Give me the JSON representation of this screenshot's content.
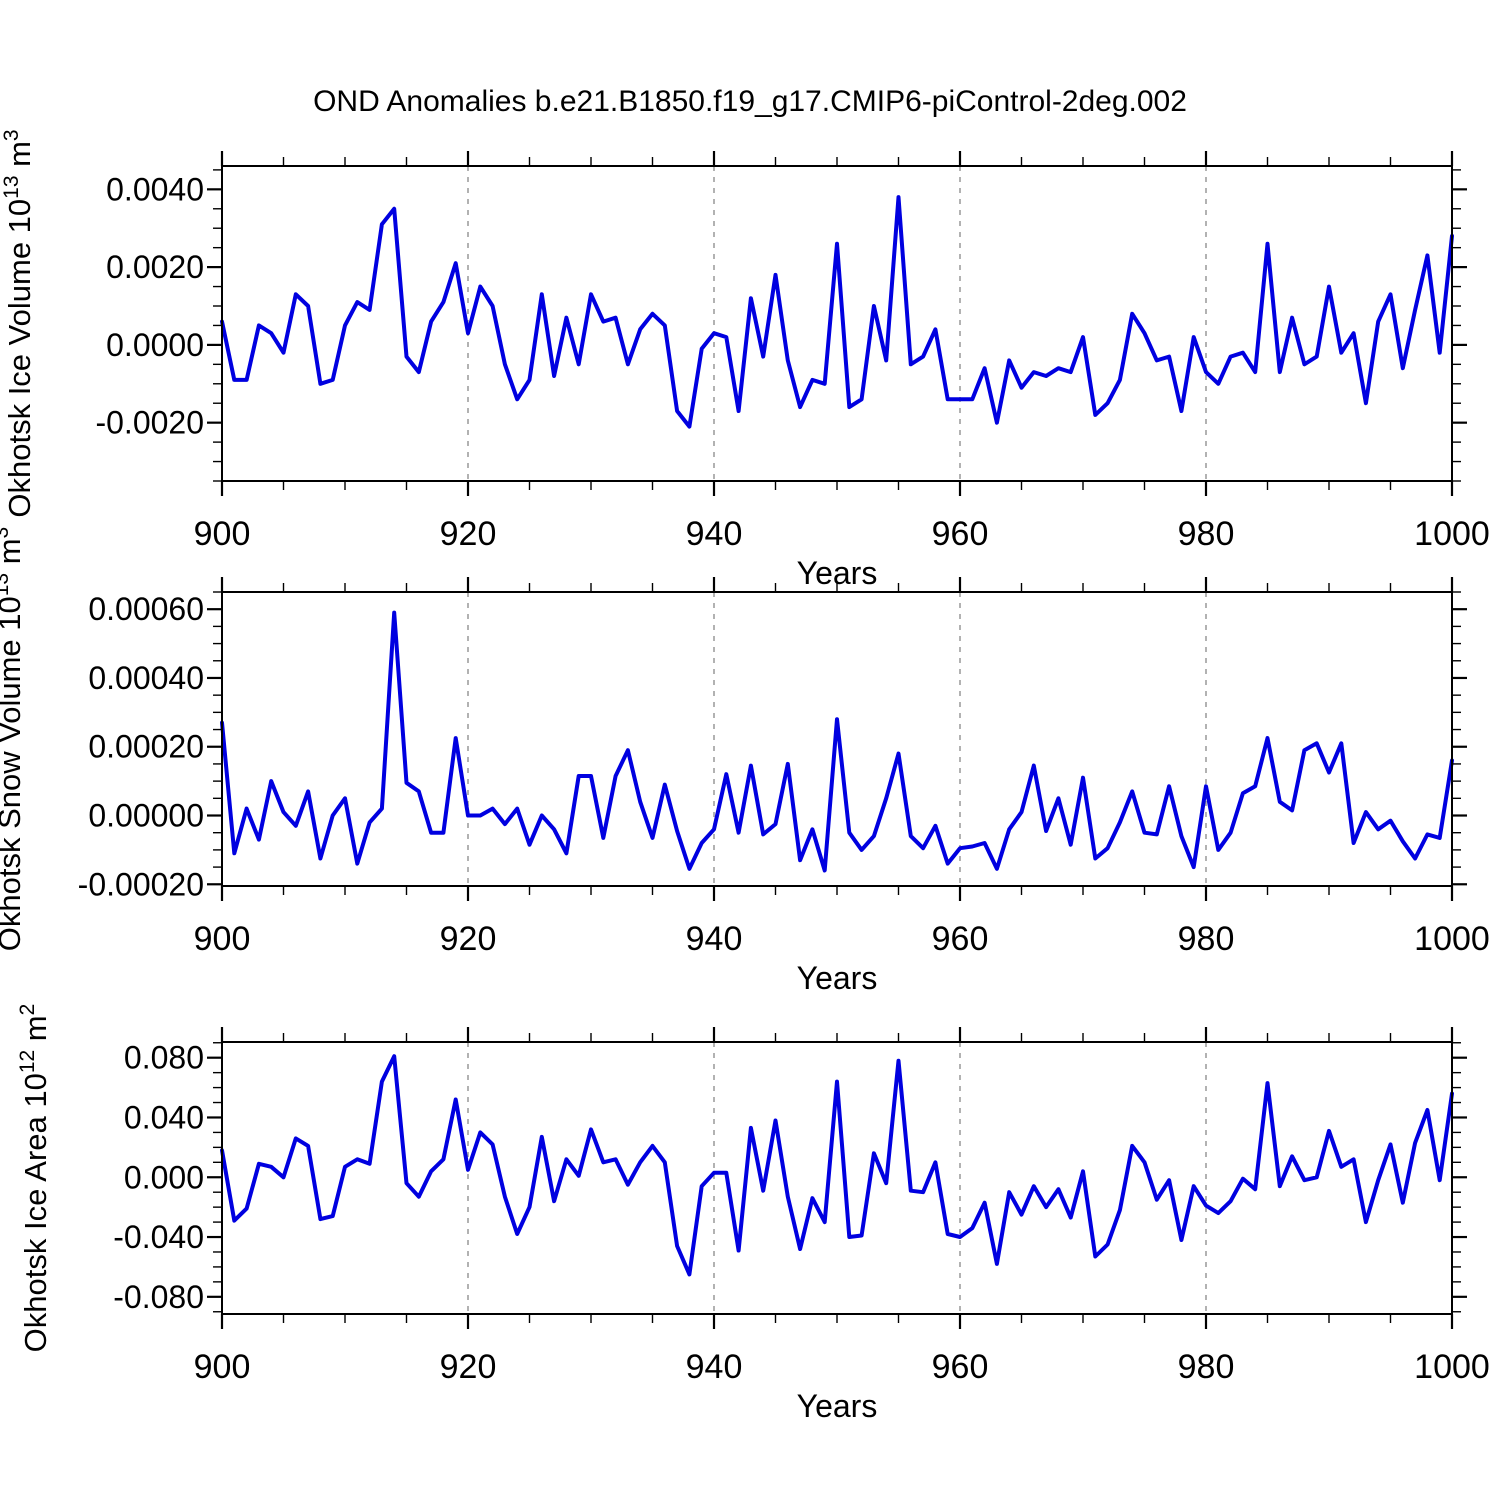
{
  "title": "OND Anomalies b.e21.B1850.f19_g17.CMIP6-piControl-2deg.002",
  "colors": {
    "line": "#0000e0",
    "grid": "#999999",
    "frame": "#000000",
    "text": "#000000"
  },
  "chart_data": {
    "type": "line",
    "title": "OND Anomalies b.e21.B1850.f19_g17.CMIP6-piControl-2deg.002",
    "x_label": "Years",
    "x_range": [
      900,
      1000
    ],
    "x_step": 1,
    "x_ticks_major": [
      900,
      920,
      940,
      960,
      980,
      1000
    ],
    "x_tick_labels": [
      "900",
      "920",
      "940",
      "960",
      "980",
      "1000"
    ],
    "x_minor_step": 5,
    "x_gridlines": [
      920,
      940,
      960,
      980
    ],
    "grid_style": "dashed",
    "legend": "none",
    "panels": [
      {
        "id": "ice-volume",
        "ylabel_text": "Okhotsk Ice Volume 10^13 m^3",
        "ylabel_parts": [
          {
            "t": "Okhotsk Ice Volume 10"
          },
          {
            "t": "13",
            "sup": true
          },
          {
            "t": " m"
          },
          {
            "t": "3",
            "sup": true
          }
        ],
        "ylim": [
          -0.0035,
          0.0046
        ],
        "y_ticks": [
          {
            "v": 0.004,
            "label": "0.0040"
          },
          {
            "v": 0.002,
            "label": "0.0020"
          },
          {
            "v": 0.0,
            "label": "0.0000"
          },
          {
            "v": -0.002,
            "label": "-0.0020"
          }
        ],
        "y_minor_step": 0.0005,
        "values": [
          0.0006,
          -0.0009,
          -0.0009,
          0.0005,
          0.0003,
          -0.0002,
          0.0013,
          0.001,
          -0.001,
          -0.0009,
          0.0005,
          0.0011,
          0.0009,
          0.0031,
          0.0035,
          -0.0003,
          -0.0007,
          0.0006,
          0.0011,
          0.0021,
          0.0003,
          0.0015,
          0.001,
          -0.0005,
          -0.0014,
          -0.0009,
          0.0013,
          -0.0008,
          0.0007,
          -0.0005,
          0.0013,
          0.0006,
          0.0007,
          -0.0005,
          0.0004,
          0.0008,
          0.0005,
          -0.0017,
          -0.0021,
          -0.0001,
          0.0003,
          0.0002,
          -0.0017,
          0.0012,
          -0.0003,
          0.0018,
          -0.0004,
          -0.0016,
          -0.0009,
          -0.001,
          0.0026,
          -0.0016,
          -0.0014,
          0.001,
          -0.0004,
          0.0038,
          -0.0005,
          -0.0003,
          0.0004,
          -0.0014,
          -0.0014,
          -0.0014,
          -0.0006,
          -0.002,
          -0.0004,
          -0.0011,
          -0.0007,
          -0.0008,
          -0.0006,
          -0.0007,
          0.0002,
          -0.0018,
          -0.0015,
          -0.0009,
          0.0008,
          0.0003,
          -0.0004,
          -0.0003,
          -0.0017,
          0.0002,
          -0.0007,
          -0.001,
          -0.0003,
          -0.0002,
          -0.0007,
          0.0026,
          -0.0007,
          0.0007,
          -0.0005,
          -0.0003,
          0.0015,
          -0.0002,
          0.0003,
          -0.0015,
          0.0006,
          0.0013,
          -0.0006,
          0.0009,
          0.0023,
          -0.0002,
          0.0028
        ]
      },
      {
        "id": "snow-volume",
        "ylabel_text": "Okhotsk Snow Volume 10^13 m^3",
        "ylabel_parts": [
          {
            "t": "Okhotsk Snow Volume 10"
          },
          {
            "t": "13",
            "sup": true
          },
          {
            "t": " m"
          },
          {
            "t": "3",
            "sup": true
          }
        ],
        "ylim": [
          -0.000205,
          0.00065
        ],
        "y_ticks": [
          {
            "v": 0.0006,
            "label": "0.00060"
          },
          {
            "v": 0.0004,
            "label": "0.00040"
          },
          {
            "v": 0.0002,
            "label": "0.00020"
          },
          {
            "v": 0.0,
            "label": "0.00000"
          },
          {
            "v": -0.0002,
            "label": "-0.00020"
          }
        ],
        "y_minor_step": 5e-05,
        "values": [
          0.00027,
          -0.00011,
          2e-05,
          -7e-05,
          0.0001,
          1e-05,
          -3e-05,
          7e-05,
          -0.000125,
          0.0,
          5e-05,
          -0.00014,
          -2e-05,
          2e-05,
          0.00059,
          9.5e-05,
          7e-05,
          -5e-05,
          -5e-05,
          0.000225,
          0.0,
          0.0,
          2e-05,
          -2.5e-05,
          2e-05,
          -8.5e-05,
          0.0,
          -4e-05,
          -0.00011,
          0.000115,
          0.000115,
          -6.5e-05,
          0.000115,
          0.00019,
          4e-05,
          -6.5e-05,
          9e-05,
          -4.5e-05,
          -0.000155,
          -8e-05,
          -4e-05,
          0.00012,
          -5e-05,
          0.000145,
          -5.5e-05,
          -2.5e-05,
          0.00015,
          -0.00013,
          -4e-05,
          -0.00016,
          0.00028,
          -5e-05,
          -0.0001,
          -6e-05,
          5e-05,
          0.00018,
          -6e-05,
          -9.5e-05,
          -3e-05,
          -0.00014,
          -9.5e-05,
          -9e-05,
          -8e-05,
          -0.000155,
          -4e-05,
          1e-05,
          0.000145,
          -4.5e-05,
          5e-05,
          -8.5e-05,
          0.00011,
          -0.000125,
          -9.5e-05,
          -2e-05,
          7e-05,
          -5e-05,
          -5.5e-05,
          8.5e-05,
          -6e-05,
          -0.00015,
          8.5e-05,
          -0.0001,
          -5e-05,
          6.5e-05,
          8.5e-05,
          0.000225,
          4e-05,
          1.5e-05,
          0.00019,
          0.00021,
          0.000125,
          0.00021,
          -8e-05,
          1e-05,
          -4e-05,
          -1.5e-05,
          -7.5e-05,
          -0.000125,
          -5.5e-05,
          -6.5e-05,
          0.00016
        ]
      },
      {
        "id": "ice-area",
        "ylabel_text": "Okhotsk Ice Area 10^12 m^2",
        "ylabel_parts": [
          {
            "t": "Okhotsk Ice Area 10"
          },
          {
            "t": "12",
            "sup": true
          },
          {
            "t": " m"
          },
          {
            "t": "2",
            "sup": true
          }
        ],
        "ylim": [
          -0.0915,
          0.0905
        ],
        "y_ticks": [
          {
            "v": 0.08,
            "label": "0.080"
          },
          {
            "v": 0.04,
            "label": "0.040"
          },
          {
            "v": 0.0,
            "label": "0.000"
          },
          {
            "v": -0.04,
            "label": "-0.040"
          },
          {
            "v": -0.08,
            "label": "-0.080"
          }
        ],
        "y_minor_step": 0.01,
        "values": [
          0.018,
          -0.029,
          -0.021,
          0.009,
          0.007,
          0.0,
          0.026,
          0.021,
          -0.028,
          -0.026,
          0.007,
          0.012,
          0.009,
          0.064,
          0.081,
          -0.004,
          -0.013,
          0.004,
          0.012,
          0.052,
          0.005,
          0.03,
          0.022,
          -0.013,
          -0.038,
          -0.02,
          0.027,
          -0.016,
          0.012,
          0.001,
          0.032,
          0.01,
          0.012,
          -0.005,
          0.01,
          0.021,
          0.01,
          -0.046,
          -0.065,
          -0.006,
          0.003,
          0.003,
          -0.049,
          0.033,
          -0.009,
          0.038,
          -0.013,
          -0.048,
          -0.014,
          -0.03,
          0.064,
          -0.04,
          -0.039,
          0.016,
          -0.004,
          0.078,
          -0.009,
          -0.01,
          0.01,
          -0.038,
          -0.04,
          -0.034,
          -0.017,
          -0.058,
          -0.01,
          -0.025,
          -0.006,
          -0.02,
          -0.008,
          -0.027,
          0.004,
          -0.053,
          -0.045,
          -0.022,
          0.021,
          0.01,
          -0.015,
          -0.002,
          -0.042,
          -0.006,
          -0.019,
          -0.024,
          -0.016,
          -0.001,
          -0.008,
          0.063,
          -0.006,
          0.014,
          -0.002,
          0.0,
          0.031,
          0.007,
          0.012,
          -0.03,
          -0.002,
          0.022,
          -0.017,
          0.023,
          0.045,
          -0.002,
          0.056
        ]
      }
    ]
  }
}
